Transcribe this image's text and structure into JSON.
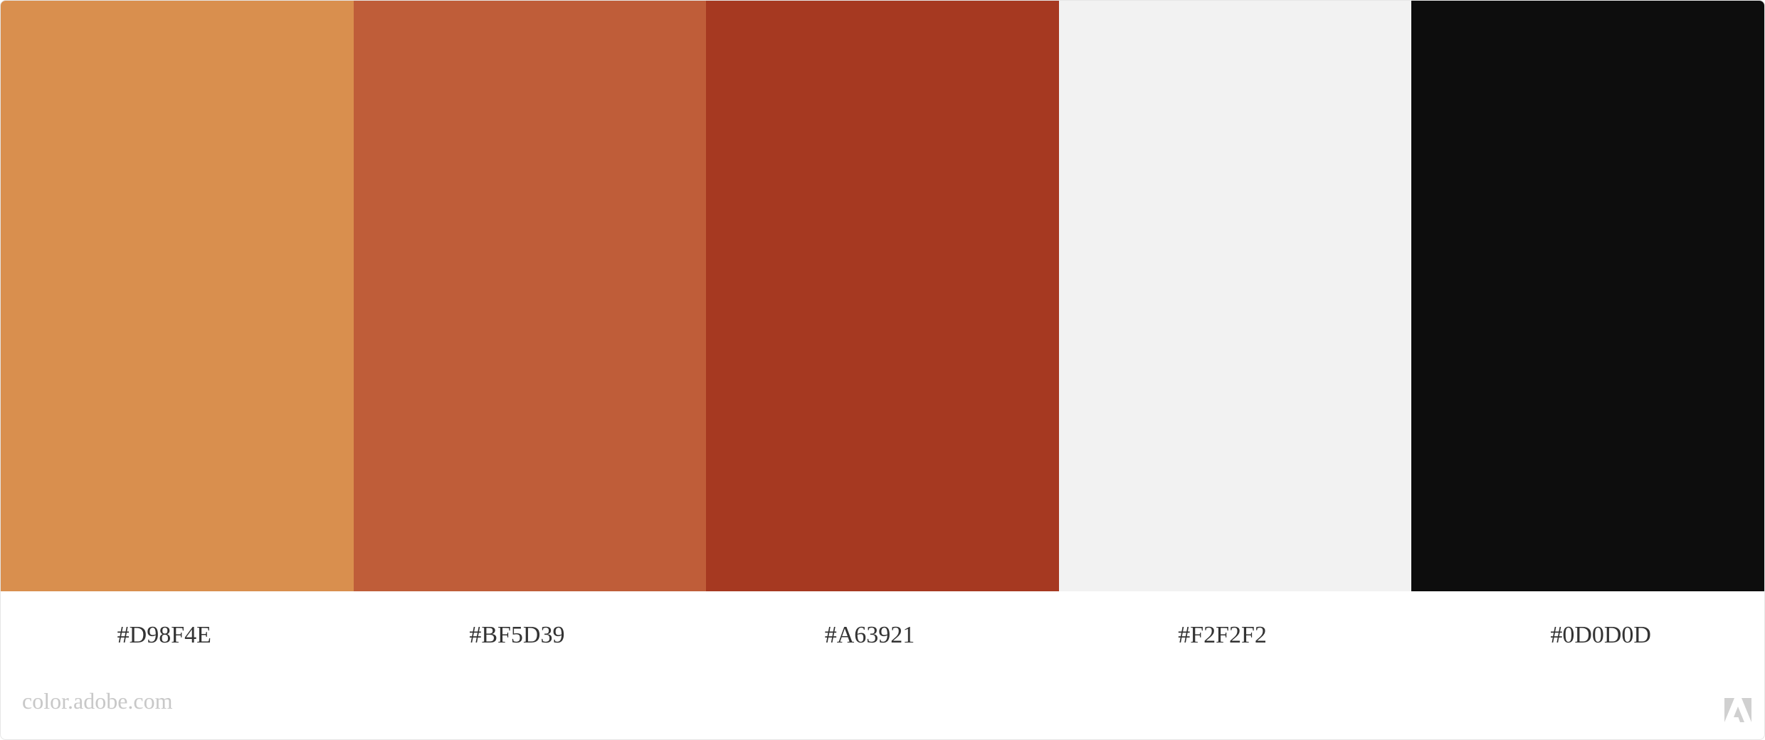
{
  "palette": {
    "swatches": [
      {
        "hex_label": "#D98F4E",
        "color": "#D98F4E"
      },
      {
        "hex_label": "#BF5D39",
        "color": "#BF5D39"
      },
      {
        "hex_label": "#A63921",
        "color": "#A63921"
      },
      {
        "hex_label": "#F2F2F2",
        "color": "#F2F2F2"
      },
      {
        "hex_label": "#0D0D0D",
        "color": "#0D0D0D"
      }
    ]
  },
  "footer": {
    "site": "color.adobe.com",
    "logo_icon": "adobe-logo-icon",
    "logo_color": "#d0d0d0"
  }
}
